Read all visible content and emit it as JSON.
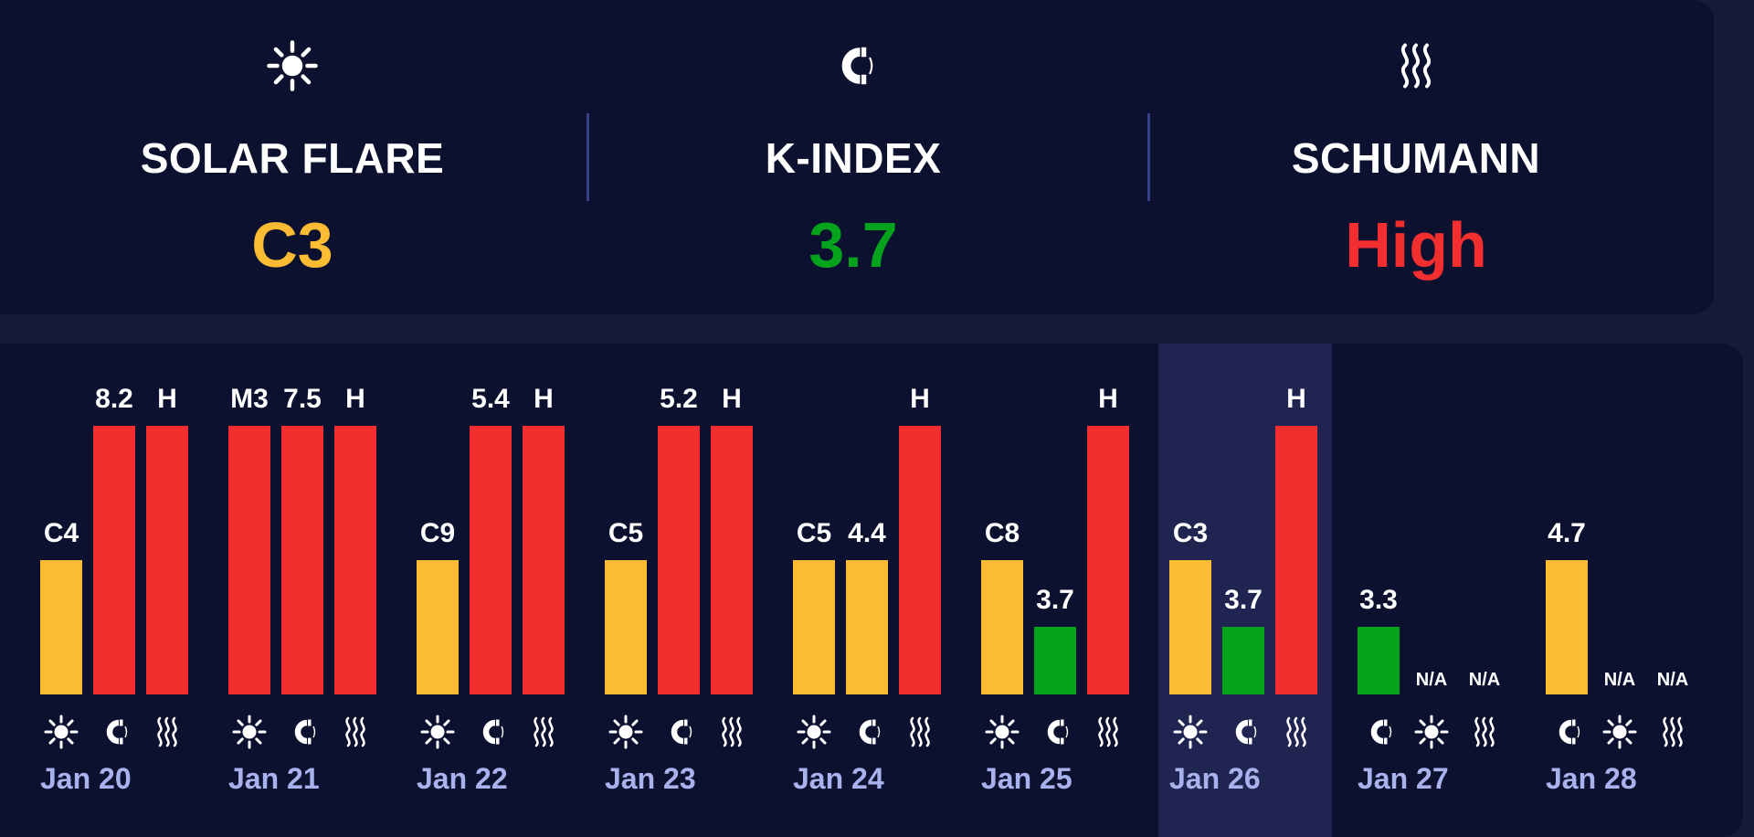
{
  "summary": {
    "metrics": [
      {
        "id": "solar",
        "icon": "sun-icon",
        "label": "SOLAR FLARE",
        "value": "C3",
        "color": "#fbbc34"
      },
      {
        "id": "kindex",
        "icon": "magnet-icon",
        "label": "K-INDEX",
        "value": "3.7",
        "color": "#05a31b"
      },
      {
        "id": "schumann",
        "icon": "waves-icon",
        "label": "SCHUMANN",
        "value": "High",
        "color": "#f22e2e"
      }
    ]
  },
  "colors": {
    "yellow": "#fbbc34",
    "red": "#f22e2e",
    "green": "#05a31b"
  },
  "chart_data": {
    "type": "bar",
    "series": [
      {
        "name": "SOLAR FLARE",
        "kind": "solar"
      },
      {
        "name": "K-INDEX",
        "kind": "kindex"
      },
      {
        "name": "SCHUMANN",
        "kind": "schumann"
      }
    ],
    "days": [
      {
        "date": "",
        "slots": [
          {
            "kind": "solar",
            "label": "",
            "level": 0.0,
            "color": "yellow"
          },
          {
            "kind": "kindex",
            "label": "",
            "level": 0.0,
            "color": "red"
          },
          {
            "kind": "schumann",
            "label": "H",
            "level": 1.0,
            "color": "red"
          }
        ]
      },
      {
        "date": "Jan 20",
        "slots": [
          {
            "kind": "solar",
            "label": "C4",
            "level": 0.5,
            "color": "yellow"
          },
          {
            "kind": "kindex",
            "label": "8.2",
            "level": 1.0,
            "color": "red"
          },
          {
            "kind": "schumann",
            "label": "H",
            "level": 1.0,
            "color": "red"
          }
        ]
      },
      {
        "date": "Jan 21",
        "slots": [
          {
            "kind": "solar",
            "label": "M3",
            "level": 1.0,
            "color": "red"
          },
          {
            "kind": "kindex",
            "label": "7.5",
            "level": 1.0,
            "color": "red"
          },
          {
            "kind": "schumann",
            "label": "H",
            "level": 1.0,
            "color": "red"
          }
        ]
      },
      {
        "date": "Jan 22",
        "slots": [
          {
            "kind": "solar",
            "label": "C9",
            "level": 0.5,
            "color": "yellow"
          },
          {
            "kind": "kindex",
            "label": "5.4",
            "level": 1.0,
            "color": "red"
          },
          {
            "kind": "schumann",
            "label": "H",
            "level": 1.0,
            "color": "red"
          }
        ]
      },
      {
        "date": "Jan 23",
        "slots": [
          {
            "kind": "solar",
            "label": "C5",
            "level": 0.5,
            "color": "yellow"
          },
          {
            "kind": "kindex",
            "label": "5.2",
            "level": 1.0,
            "color": "red"
          },
          {
            "kind": "schumann",
            "label": "H",
            "level": 1.0,
            "color": "red"
          }
        ]
      },
      {
        "date": "Jan 24",
        "slots": [
          {
            "kind": "solar",
            "label": "C5",
            "level": 0.5,
            "color": "yellow"
          },
          {
            "kind": "kindex",
            "label": "4.4",
            "level": 0.5,
            "color": "yellow"
          },
          {
            "kind": "schumann",
            "label": "H",
            "level": 1.0,
            "color": "red"
          }
        ]
      },
      {
        "date": "Jan 25",
        "slots": [
          {
            "kind": "solar",
            "label": "C8",
            "level": 0.5,
            "color": "yellow"
          },
          {
            "kind": "kindex",
            "label": "3.7",
            "level": 0.25,
            "color": "green"
          },
          {
            "kind": "schumann",
            "label": "H",
            "level": 1.0,
            "color": "red"
          }
        ]
      },
      {
        "date": "Jan 26",
        "today": true,
        "slots": [
          {
            "kind": "solar",
            "label": "C3",
            "level": 0.5,
            "color": "yellow"
          },
          {
            "kind": "kindex",
            "label": "3.7",
            "level": 0.25,
            "color": "green"
          },
          {
            "kind": "schumann",
            "label": "H",
            "level": 1.0,
            "color": "red"
          }
        ]
      },
      {
        "date": "Jan 27",
        "slots": [
          {
            "kind": "kindex",
            "label": "3.3",
            "level": 0.25,
            "color": "green"
          },
          {
            "kind": "solar",
            "label": "N/A",
            "level": 0.0,
            "color": "yellow"
          },
          {
            "kind": "schumann",
            "label": "N/A",
            "level": 0.0,
            "color": "red"
          }
        ]
      },
      {
        "date": "Jan 28",
        "slots": [
          {
            "kind": "kindex",
            "label": "4.7",
            "level": 0.5,
            "color": "yellow"
          },
          {
            "kind": "solar",
            "label": "N/A",
            "level": 0.0,
            "color": "yellow"
          },
          {
            "kind": "schumann",
            "label": "N/A",
            "level": 0.0,
            "color": "red"
          }
        ]
      }
    ]
  }
}
